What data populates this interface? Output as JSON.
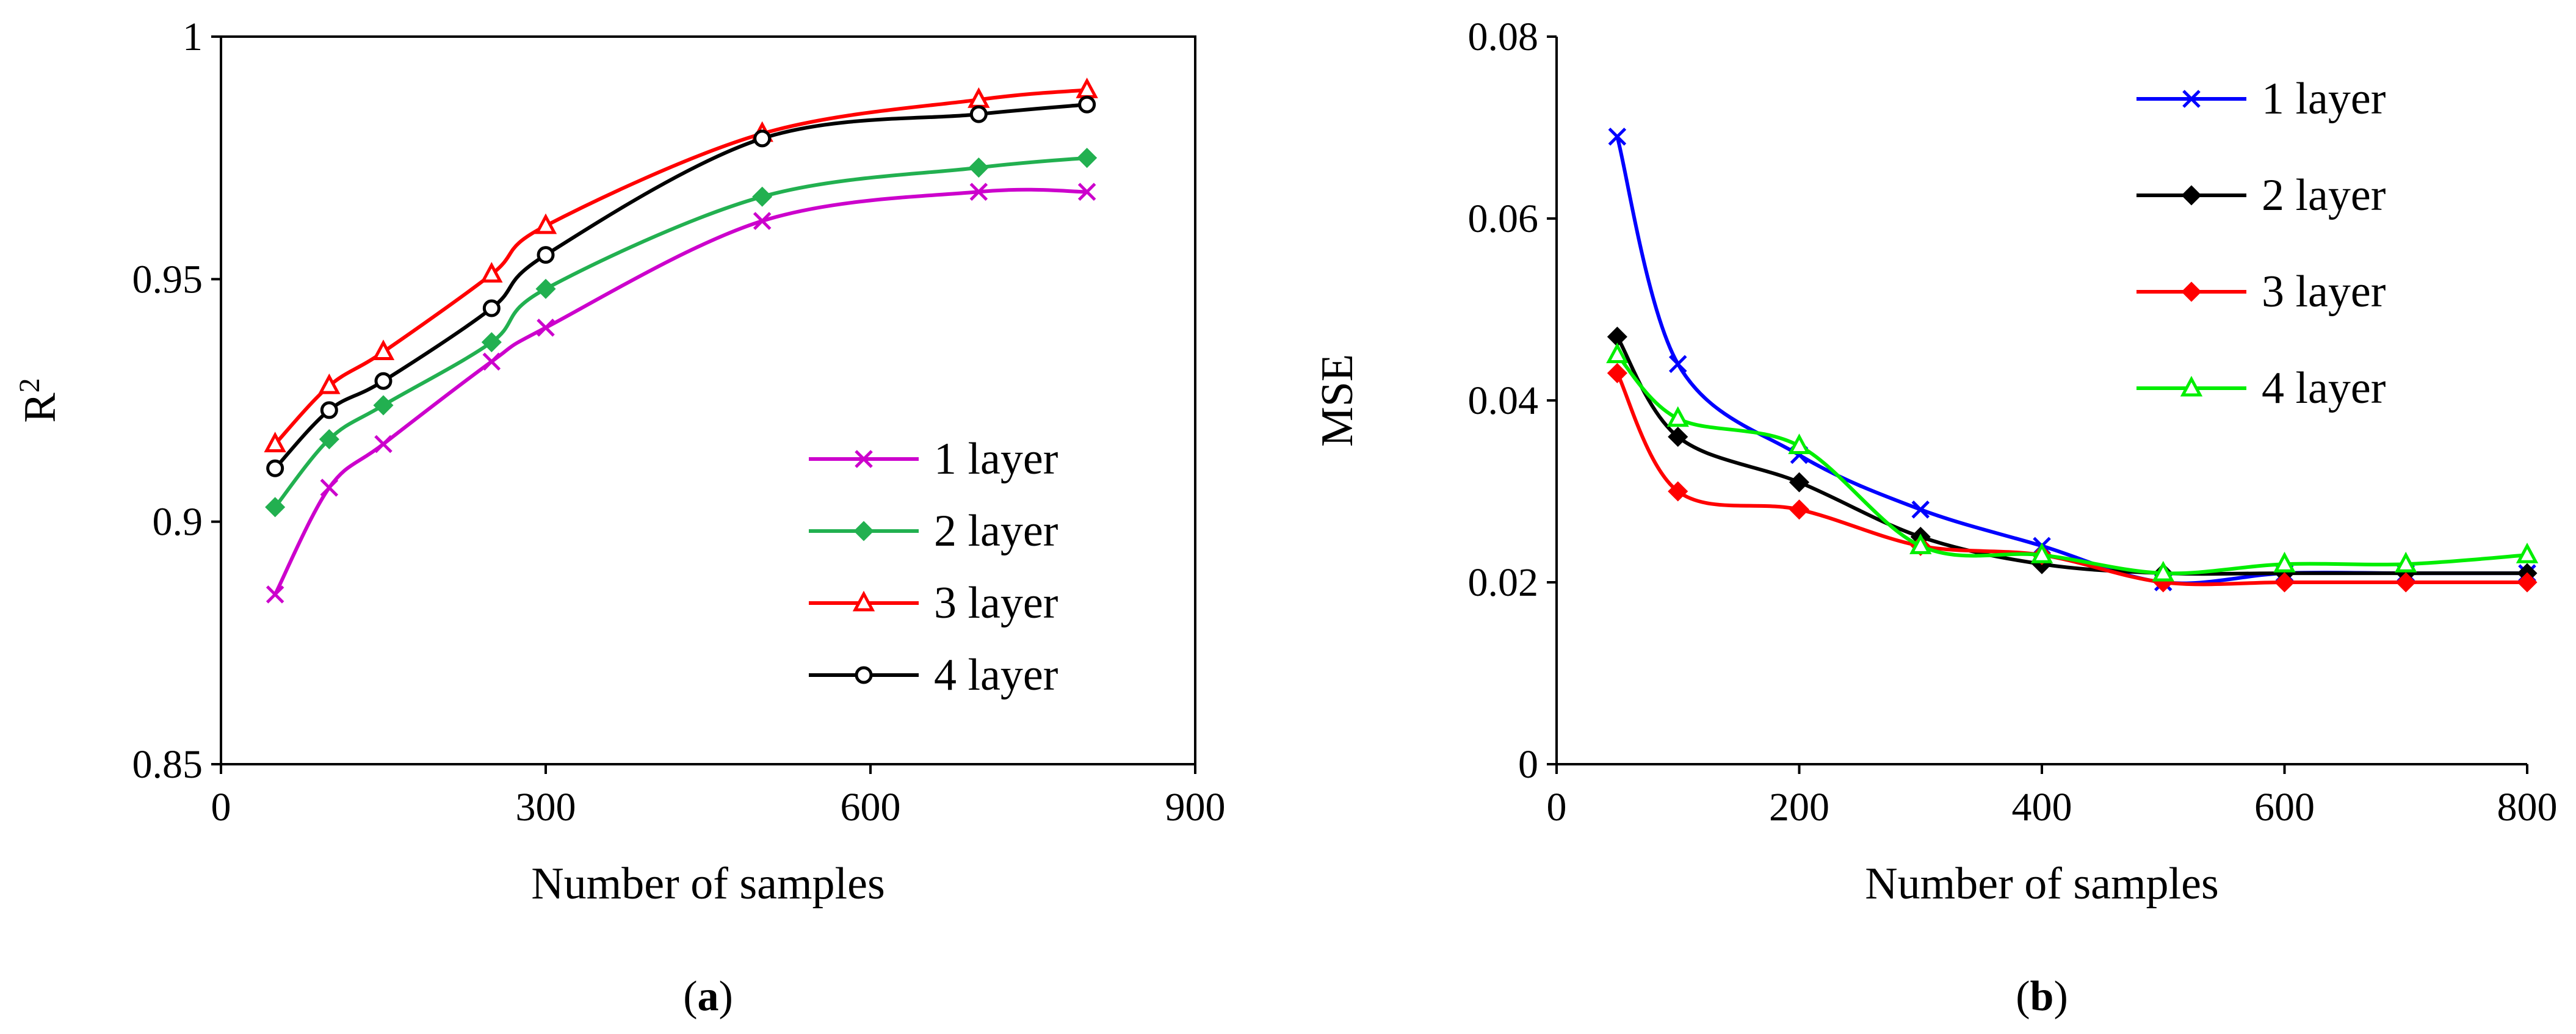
{
  "chart_data": [
    {
      "type": "line",
      "panel_label": "(a)",
      "xlabel": "Number of samples",
      "ylabel": "R2",
      "xlim": [
        0,
        900
      ],
      "ylim": [
        0.85,
        1
      ],
      "x_ticks": [
        "0",
        "300",
        "600",
        "900"
      ],
      "y_ticks": [
        "0.85",
        "0.9",
        "0.95",
        "1"
      ],
      "grid": false,
      "legend_position": "bottom-right",
      "series": [
        {
          "name": "1 layer",
          "color": "#cc00cc",
          "marker": "x",
          "x": [
            50,
            100,
            150,
            250,
            300,
            500,
            700,
            800
          ],
          "y": [
            0.885,
            0.907,
            0.916,
            0.933,
            0.94,
            0.962,
            0.968,
            0.968
          ]
        },
        {
          "name": "2 layer",
          "color": "#22b050",
          "marker": "diamond",
          "x": [
            50,
            100,
            150,
            250,
            300,
            500,
            700,
            800
          ],
          "y": [
            0.903,
            0.917,
            0.924,
            0.937,
            0.948,
            0.967,
            0.973,
            0.975
          ]
        },
        {
          "name": "3 layer",
          "color": "#ff0000",
          "marker": "triangle",
          "x": [
            50,
            100,
            150,
            250,
            300,
            500,
            700,
            800
          ],
          "y": [
            0.916,
            0.928,
            0.935,
            0.951,
            0.961,
            0.98,
            0.987,
            0.989
          ]
        },
        {
          "name": "4 layer",
          "color": "#000000",
          "marker": "circle",
          "x": [
            50,
            100,
            150,
            250,
            300,
            500,
            700,
            800
          ],
          "y": [
            0.911,
            0.923,
            0.929,
            0.944,
            0.955,
            0.979,
            0.984,
            0.986
          ]
        }
      ]
    },
    {
      "type": "line",
      "panel_label": "(b)",
      "xlabel": "Number of samples",
      "ylabel": "MSE",
      "xlim": [
        0,
        800
      ],
      "ylim": [
        0,
        0.08
      ],
      "x_ticks": [
        "0",
        "200",
        "400",
        "600",
        "800"
      ],
      "y_ticks": [
        "0",
        "0.02",
        "0.04",
        "0.06",
        "0.08"
      ],
      "grid": false,
      "legend_position": "top-right",
      "series": [
        {
          "name": "1 layer",
          "color": "#0000ff",
          "marker": "x",
          "x": [
            50,
            100,
            200,
            300,
            400,
            500,
            600,
            700,
            800
          ],
          "y": [
            0.069,
            0.044,
            0.034,
            0.028,
            0.024,
            0.02,
            0.021,
            0.021,
            0.021
          ]
        },
        {
          "name": "2 layer",
          "color": "#000000",
          "marker": "diamond",
          "x": [
            50,
            100,
            200,
            300,
            400,
            500,
            600,
            700,
            800
          ],
          "y": [
            0.047,
            0.036,
            0.031,
            0.025,
            0.022,
            0.021,
            0.021,
            0.021,
            0.021
          ]
        },
        {
          "name": "3 layer",
          "color": "#ff0000",
          "marker": "diamond",
          "x": [
            50,
            100,
            200,
            300,
            400,
            500,
            600,
            700,
            800
          ],
          "y": [
            0.043,
            0.03,
            0.028,
            0.024,
            0.023,
            0.02,
            0.02,
            0.02,
            0.02
          ]
        },
        {
          "name": "4 layer",
          "color": "#00ee00",
          "marker": "triangle",
          "x": [
            50,
            100,
            200,
            300,
            400,
            500,
            600,
            700,
            800
          ],
          "y": [
            0.045,
            0.038,
            0.035,
            0.024,
            0.023,
            0.021,
            0.022,
            0.022,
            0.023
          ]
        }
      ]
    }
  ]
}
